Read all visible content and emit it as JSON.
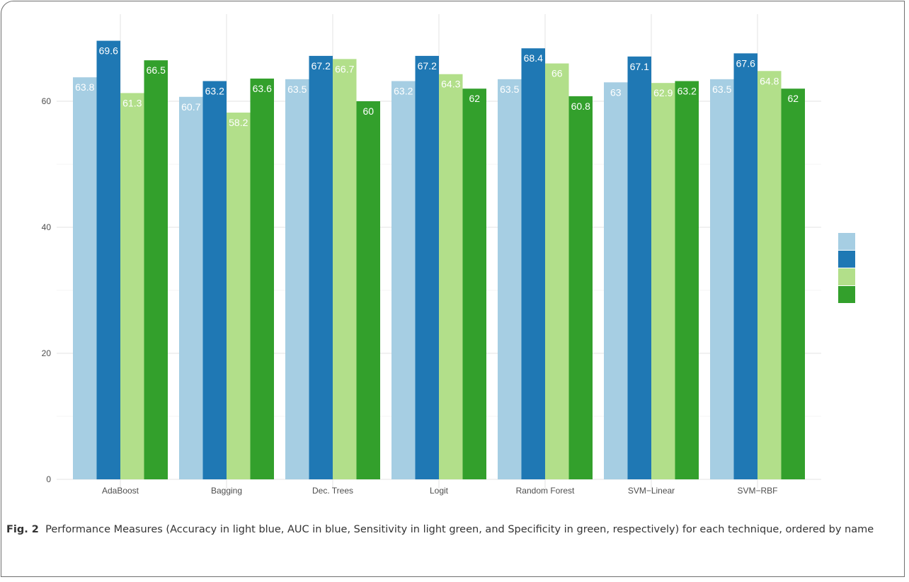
{
  "chart_data": {
    "type": "bar",
    "categories": [
      "AdaBoost",
      "Bagging",
      "Dec. Trees",
      "Logit",
      "Random Forest",
      "SVM−Linear",
      "SVM−RBF"
    ],
    "series": [
      {
        "color": "#a6cee3",
        "values": [
          63.8,
          60.7,
          63.5,
          63.2,
          63.5,
          63,
          63.5
        ]
      },
      {
        "color": "#1f78b4",
        "values": [
          69.6,
          63.2,
          67.2,
          67.2,
          68.4,
          67.1,
          67.6
        ]
      },
      {
        "color": "#b2df8a",
        "values": [
          61.3,
          58.2,
          66.7,
          64.3,
          66,
          62.9,
          64.8
        ]
      },
      {
        "color": "#33a02c",
        "values": [
          66.5,
          63.6,
          60,
          62,
          60.8,
          63.2,
          62
        ]
      }
    ],
    "yticks": [
      0,
      20,
      40,
      60
    ],
    "ylim": [
      0,
      70
    ],
    "grid": true,
    "legend": "right"
  },
  "caption": {
    "fig_label": "Fig. 2",
    "text": "Performance Measures (Accuracy in light blue, AUC in blue, Sensitivity in light green, and Specificity in green, respectively) for each technique, ordered by name"
  }
}
